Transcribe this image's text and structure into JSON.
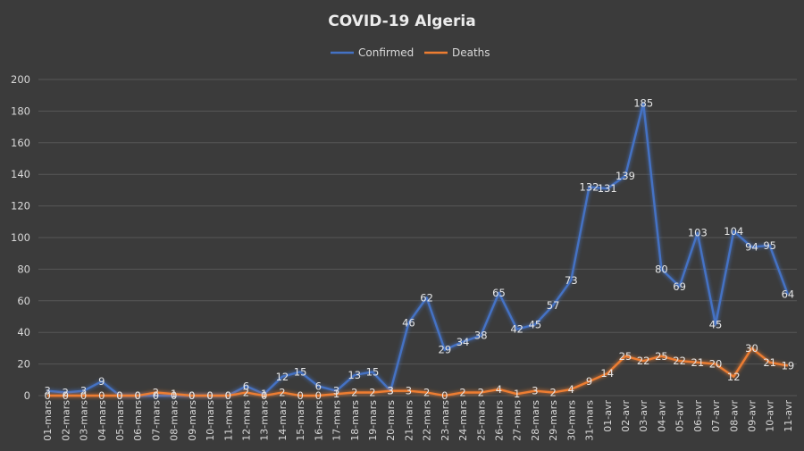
{
  "chart_data": {
    "type": "line",
    "title": "COVID-19 Algeria",
    "legend_position": "top-center",
    "grid": true,
    "ylim": [
      0,
      200
    ],
    "yticks": [
      0,
      20,
      40,
      60,
      80,
      100,
      120,
      140,
      160,
      180,
      200
    ],
    "categories": [
      "01-mars",
      "02-mars",
      "03-mars",
      "04-mars",
      "05-mars",
      "06-mars",
      "07-mars",
      "08-mars",
      "09-mars",
      "10-mars",
      "11-mars",
      "12-mars",
      "13-mars",
      "14-mars",
      "15-mars",
      "16-mars",
      "17-mars",
      "18-mars",
      "19-mars",
      "20-mars",
      "21-mars",
      "22-mars",
      "23-mars",
      "24-mars",
      "25-mars",
      "26-mars",
      "27-mars",
      "28-mars",
      "29-mars",
      "30-mars",
      "31-mars",
      "01-avr",
      "02-avr",
      "03-avr",
      "04-avr",
      "05-avr",
      "06-avr",
      "07-avr",
      "08-avr",
      "09-avr",
      "10-avr",
      "11-avr"
    ],
    "series": [
      {
        "name": "Confirmed",
        "color": "#4472c4",
        "values": [
          3,
          2,
          3,
          9,
          0,
          0,
          0,
          0,
          0,
          0,
          0,
          6,
          1,
          12,
          15,
          6,
          3,
          13,
          15,
          3,
          46,
          62,
          29,
          34,
          38,
          65,
          42,
          45,
          57,
          73,
          132,
          131,
          139,
          185,
          80,
          69,
          103,
          45,
          104,
          94,
          95,
          64
        ]
      },
      {
        "name": "Deaths",
        "color": "#ed7d31",
        "values": [
          0,
          0,
          0,
          0,
          0,
          0,
          2,
          1,
          0,
          0,
          0,
          2,
          0,
          2,
          0,
          0,
          1,
          2,
          2,
          3,
          3,
          2,
          0,
          2,
          2,
          4,
          1,
          3,
          2,
          4,
          9,
          14,
          25,
          22,
          25,
          22,
          21,
          20,
          12,
          30,
          21,
          19
        ]
      }
    ]
  }
}
